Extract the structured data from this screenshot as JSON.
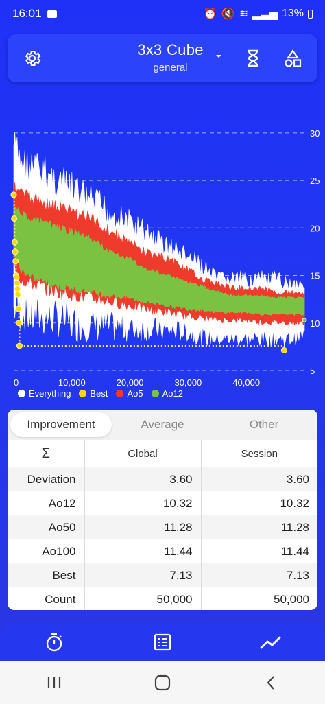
{
  "status": {
    "time": "16:01",
    "battery": "13%"
  },
  "header": {
    "title": "3x3 Cube",
    "subtitle": "general"
  },
  "chart_data": {
    "type": "line",
    "x_ticks": [
      "0",
      "10,000",
      "20,000",
      "30,000",
      "40,000"
    ],
    "y_ticks": [
      "5",
      "10",
      "15",
      "20",
      "25",
      "30"
    ],
    "xlim": [
      0,
      50000
    ],
    "ylim": [
      5,
      31
    ],
    "grid": "horizontal dashed",
    "legend_placement": "bottom-left",
    "series": [
      {
        "name": "Everything",
        "color": "#ffffff"
      },
      {
        "name": "Best",
        "color": "#ffd60a"
      },
      {
        "name": "Ao5",
        "color": "#ef3b2c"
      },
      {
        "name": "Ao12",
        "color": "#7cc242"
      }
    ],
    "everything": {
      "x": [
        0,
        500,
        1000,
        2000,
        3000,
        5000,
        7500,
        10000,
        12500,
        15000,
        17500,
        20000,
        22500,
        25000,
        27500,
        30000,
        32500,
        35000,
        37500,
        40000,
        42500,
        45000,
        47500,
        50000
      ],
      "upper": [
        31,
        30,
        29.5,
        29,
        28.5,
        28,
        27,
        26,
        25,
        24,
        23,
        22,
        21,
        20,
        19,
        18,
        17,
        15.5,
        15.5,
        15.5,
        15.5,
        15.5,
        15,
        15
      ],
      "lower": [
        9,
        10,
        9,
        9,
        8.5,
        8.5,
        8.5,
        8,
        8,
        8,
        8,
        8,
        8,
        8,
        8,
        8,
        7.5,
        7.5,
        7.5,
        7.5,
        7.5,
        7.5,
        7.5,
        8
      ]
    },
    "ao5": {
      "x": [
        0,
        1000,
        2500,
        5000,
        7500,
        10000,
        12500,
        15000,
        17500,
        20000,
        22500,
        25000,
        27500,
        30000,
        32500,
        35000,
        37500,
        40000,
        42500,
        45000,
        47500,
        50000
      ],
      "upper": [
        25,
        24.5,
        24,
        23.5,
        23,
        22.5,
        22,
        21,
        20,
        19,
        18,
        17.5,
        17,
        16,
        15,
        14.5,
        14,
        14,
        14,
        13.5,
        13.5,
        13.5
      ],
      "lower": [
        15.5,
        14,
        13.5,
        13,
        12.5,
        12.3,
        12,
        11.8,
        11.5,
        11.3,
        11,
        10.8,
        10.5,
        10.3,
        10.2,
        10,
        10,
        10,
        9.8,
        9.8,
        9.8,
        9.8
      ]
    },
    "ao12": {
      "x": [
        0,
        1000,
        2500,
        5000,
        7500,
        10000,
        12500,
        15000,
        17500,
        20000,
        22500,
        25000,
        27500,
        30000,
        32500,
        35000,
        37500,
        40000,
        42500,
        45000,
        47500,
        50000
      ],
      "upper": [
        23,
        22,
        21.5,
        21,
        20.5,
        20,
        19.5,
        18.5,
        17.5,
        17,
        16,
        15.5,
        15,
        14.5,
        14,
        13.5,
        13,
        13,
        13,
        12.8,
        12.8,
        12.8
      ],
      "lower": [
        17,
        15.5,
        14.5,
        14,
        13.5,
        13.2,
        13,
        12.7,
        12.5,
        12.3,
        12,
        11.8,
        11.5,
        11.3,
        11.2,
        11,
        11,
        11,
        10.8,
        10.8,
        10.8,
        10.8
      ]
    },
    "best": {
      "x": [
        0,
        80,
        160,
        240,
        320,
        400,
        480,
        560,
        640,
        720,
        800,
        900,
        1000,
        46500
      ],
      "y": [
        23.5,
        21,
        18.5,
        17.5,
        16.5,
        15,
        14.8,
        14.2,
        13.6,
        13,
        11.5,
        10,
        7.6,
        7.13
      ]
    }
  },
  "legend": {
    "everything": "Everything",
    "best": "Best",
    "ao5": "Ao5",
    "ao12": "Ao12"
  },
  "tabs": [
    "Improvement",
    "Average",
    "Other"
  ],
  "table": {
    "sigma": "Σ",
    "col_global": "Global",
    "col_session": "Session",
    "rows": [
      {
        "label": "Deviation",
        "global": "3.60",
        "session": "3.60"
      },
      {
        "label": "Ao12",
        "global": "10.32",
        "session": "10.32"
      },
      {
        "label": "Ao50",
        "global": "11.28",
        "session": "11.28"
      },
      {
        "label": "Ao100",
        "global": "11.44",
        "session": "11.44"
      },
      {
        "label": "Best",
        "global": "7.13",
        "session": "7.13"
      },
      {
        "label": "Count",
        "global": "50,000",
        "session": "50,000"
      }
    ]
  },
  "icons": {
    "settings": "gear-icon",
    "timer": "hourglass-icon",
    "shapes": "shapes-icon",
    "nav_timer": "stopwatch-icon",
    "nav_list": "list-icon",
    "nav_stats": "chart-line-icon"
  },
  "colors": {
    "accent": "#2b44fb",
    "background": "#1f31f6"
  }
}
